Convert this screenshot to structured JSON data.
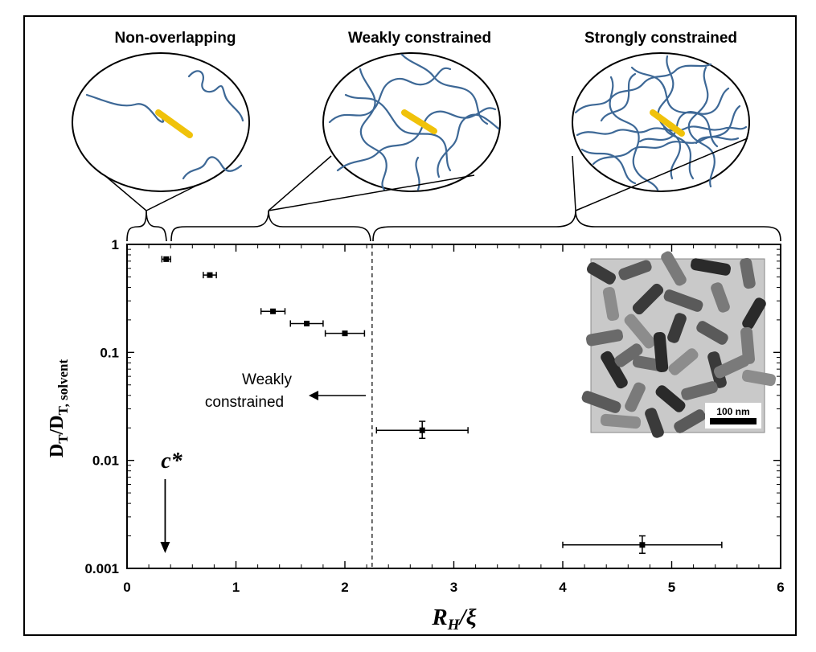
{
  "panels": [
    {
      "label": "Non-overlapping"
    },
    {
      "label": "Weakly constrained"
    },
    {
      "label": "Strongly constrained"
    }
  ],
  "annotations": {
    "region_label_line1": "Weakly",
    "region_label_line2": "constrained",
    "cstar": "c*",
    "scale_bar": "100 nm"
  },
  "colors": {
    "polymer": "#3d6896",
    "rod": "#f0c20a",
    "rod_edge": "#c99a00",
    "frame": "#000000"
  },
  "chart_data": {
    "type": "scatter",
    "title": "",
    "xlabel": "R_H/ξ",
    "ylabel": "D_T/D_T, solvent",
    "xlim": [
      0,
      6
    ],
    "ylim": [
      0.001,
      1
    ],
    "yscale": "log",
    "grid": false,
    "legend": "none",
    "xticks": [
      "0",
      "1",
      "2",
      "3",
      "4",
      "5",
      "6"
    ],
    "yticks": [
      "0.001",
      "0.01",
      "0.1",
      "1"
    ],
    "boundary_x": 2.25,
    "cstar_x": 0.35,
    "points": [
      {
        "x": 0.36,
        "y": 0.73,
        "xerr": 0.04
      },
      {
        "x": 0.76,
        "y": 0.52,
        "xerr": 0.06
      },
      {
        "x": 1.34,
        "y": 0.24,
        "xerr": 0.11
      },
      {
        "x": 1.65,
        "y": 0.185,
        "xerr": 0.15
      },
      {
        "x": 2.0,
        "y": 0.15,
        "xerr": 0.18
      },
      {
        "x": 2.71,
        "y": 0.019,
        "xerr": 0.42,
        "yerr_low": 0.016,
        "yerr_high": 0.023
      },
      {
        "x": 4.73,
        "y": 0.00165,
        "xerr": 0.73,
        "yerr_low": 0.00138,
        "yerr_high": 0.002
      }
    ]
  }
}
